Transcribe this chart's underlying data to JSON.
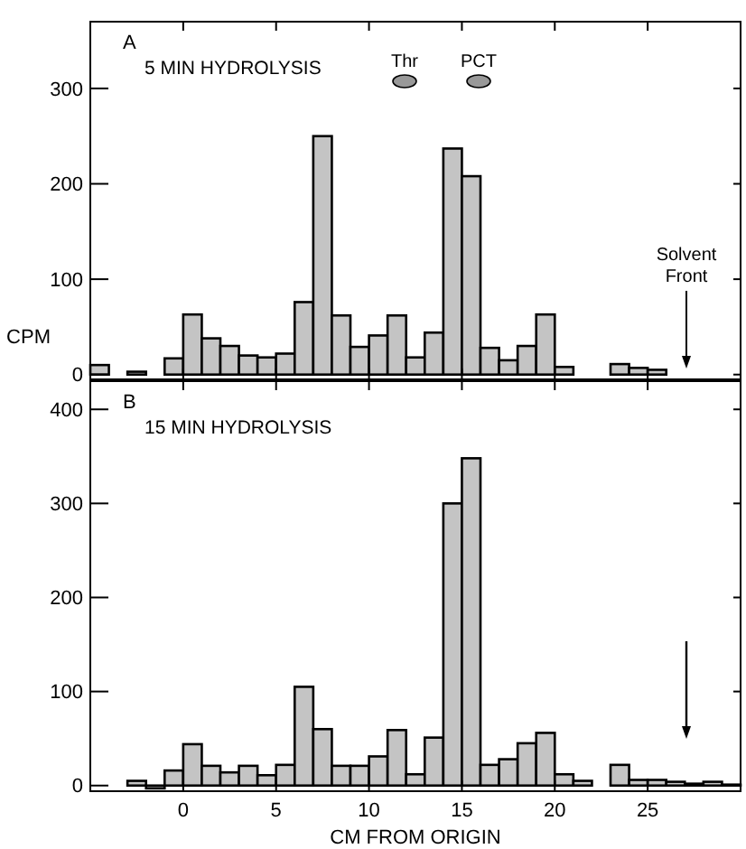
{
  "chart_data": [
    {
      "type": "histogram",
      "ylabel": "CPM",
      "annotations": [
        "A",
        "5 MIN HYDROLYSIS",
        "Thr",
        "PCT",
        "Solvent Front"
      ],
      "bins": [
        -5,
        -4,
        -3,
        -2,
        -1,
        0,
        1,
        2,
        3,
        4,
        5,
        6,
        7,
        8,
        9,
        10,
        11,
        12,
        13,
        14,
        15,
        16,
        17,
        18,
        19,
        20,
        21,
        22,
        23,
        24,
        25,
        26,
        27,
        28,
        29,
        30
      ],
      "values": [
        10,
        0,
        3,
        0,
        17,
        63,
        38,
        30,
        20,
        18,
        22,
        76,
        250,
        62,
        29,
        41,
        62,
        18,
        44,
        237,
        208,
        28,
        15,
        30,
        63,
        8,
        0,
        0,
        11,
        7,
        5,
        0,
        0,
        0,
        0
      ],
      "color": "#c4c4c4",
      "xlim": [
        -5,
        30
      ],
      "xticks": [
        0,
        5,
        10,
        15,
        20,
        25
      ],
      "ylim": [
        -5,
        370
      ],
      "yticks": [
        0,
        100,
        200,
        300
      ],
      "tick_labels": "y"
    },
    {
      "type": "histogram",
      "xlabel": "CM FROM ORIGIN",
      "annotations": [
        "B",
        "15 MIN HYDROLYSIS"
      ],
      "bins": [
        -5,
        -4,
        -3,
        -2,
        -1,
        0,
        1,
        2,
        3,
        4,
        5,
        6,
        7,
        8,
        9,
        10,
        11,
        12,
        13,
        14,
        15,
        16,
        17,
        18,
        19,
        20,
        21,
        22,
        23,
        24,
        25,
        26,
        27,
        28,
        29,
        30
      ],
      "values": [
        0,
        0,
        5,
        -3,
        16,
        44,
        21,
        14,
        21,
        11,
        22,
        105,
        60,
        21,
        21,
        31,
        59,
        12,
        51,
        300,
        348,
        22,
        28,
        45,
        56,
        12,
        5,
        0,
        22,
        6,
        6,
        4,
        2,
        4,
        1
      ],
      "color": "#c4c4c4",
      "xlim": [
        -5,
        30
      ],
      "xticks": [
        0,
        5,
        10,
        15,
        20,
        25
      ],
      "ylim": [
        -6,
        430
      ],
      "yticks": [
        0,
        100,
        200,
        300,
        400
      ]
    }
  ]
}
